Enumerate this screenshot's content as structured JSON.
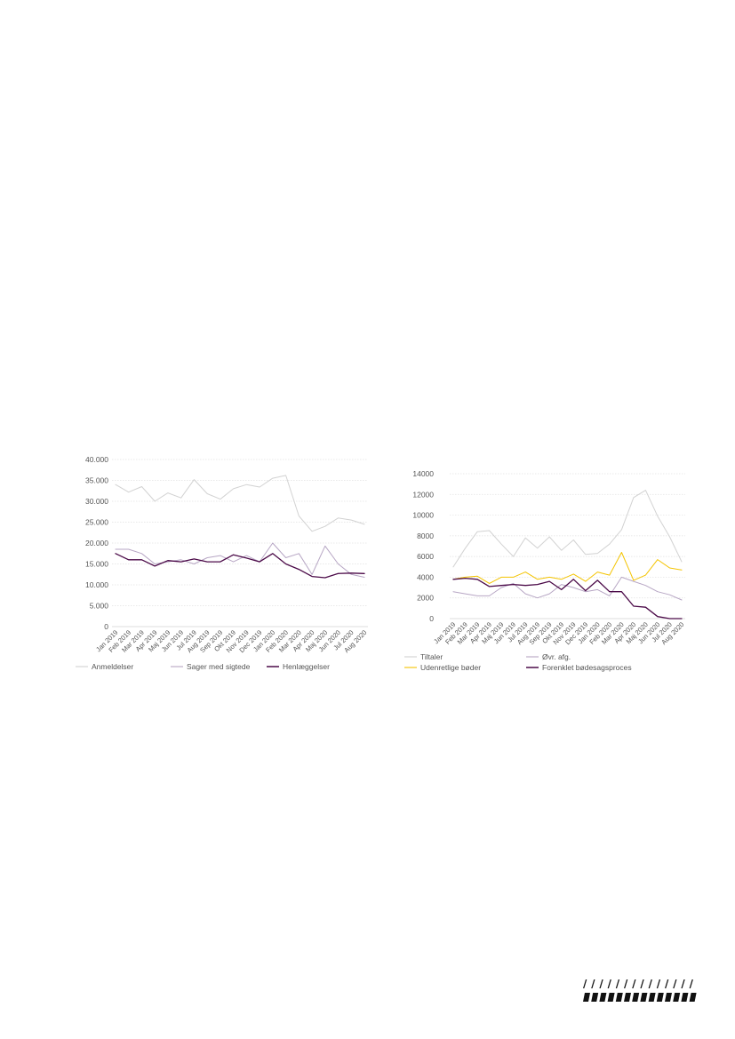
{
  "chart_data": [
    {
      "type": "line",
      "ylim": [
        0,
        40000
      ],
      "yticks": [
        0,
        5000,
        10000,
        15000,
        20000,
        25000,
        30000,
        35000,
        40000
      ],
      "ytick_labels": [
        "0",
        "5.000",
        "10.000",
        "15.000",
        "20.000",
        "25.000",
        "30.000",
        "35.000",
        "40.000"
      ],
      "categories": [
        "Jan 2019",
        "Feb 2019",
        "Mar 2019",
        "Apr 2019",
        "Maj 2019",
        "Jun 2019",
        "Jul 2019",
        "Aug 2019",
        "Sep 2019",
        "Okt 2019",
        "Nov 2019",
        "Dec 2019",
        "Jan 2020",
        "Feb 2020",
        "Mar 2020",
        "Apr 2020",
        "Maj 2020",
        "Jun 2020",
        "Jul 2020",
        "Aug 2020"
      ],
      "legend_position": "bottom",
      "grid": true,
      "series": [
        {
          "name": "Anmeldelser",
          "color": "#d2d2d2",
          "values": [
            34000,
            32200,
            33500,
            30000,
            32000,
            30800,
            35200,
            31800,
            30500,
            33000,
            34000,
            33400,
            35500,
            36200,
            26500,
            22800,
            24000,
            26000,
            25500,
            24500
          ]
        },
        {
          "name": "Sager med sigtede",
          "color": "#b7a6c4",
          "values": [
            18500,
            18500,
            17500,
            15000,
            15500,
            16000,
            15000,
            16500,
            17000,
            15500,
            17000,
            15500,
            20000,
            16500,
            17500,
            12500,
            19300,
            15000,
            12500,
            11800
          ]
        },
        {
          "name": "Henlæggelser",
          "color": "#4b0a48",
          "values": [
            17500,
            16000,
            16000,
            14500,
            15800,
            15500,
            16200,
            15500,
            15500,
            17200,
            16400,
            15500,
            17500,
            15000,
            13700,
            12000,
            11700,
            12700,
            12800,
            12700
          ]
        }
      ]
    },
    {
      "type": "line",
      "ylim": [
        0,
        14000
      ],
      "yticks": [
        0,
        2000,
        4000,
        6000,
        8000,
        10000,
        12000,
        14000
      ],
      "ytick_labels": [
        "0",
        "2000",
        "4000",
        "6000",
        "8000",
        "10000",
        "12000",
        "14000"
      ],
      "categories": [
        "Jan 2019",
        "Feb 2019",
        "Mar 2019",
        "Apr 2019",
        "Maj 2019",
        "Jun 2019",
        "Jul 2019",
        "Aug 2019",
        "Sep 2019",
        "Okt 2019",
        "Nov 2019",
        "Dec 2019",
        "Jan 2020",
        "Feb 2020",
        "Mar 2020",
        "Apr 2020",
        "Maj 2020",
        "Jun 2020",
        "Jul 2020",
        "Aug 2020"
      ],
      "legend_position": "bottom",
      "grid": true,
      "series": [
        {
          "name": "Tiltaler",
          "color": "#d2d2d2",
          "values": [
            5000,
            6800,
            8400,
            8500,
            7200,
            6000,
            7800,
            6800,
            7900,
            6600,
            7600,
            6200,
            6300,
            7200,
            8600,
            11700,
            12400,
            9900,
            7900,
            5500
          ]
        },
        {
          "name": "Øvr. afg.",
          "color": "#b7a6c4",
          "values": [
            2600,
            2400,
            2200,
            2200,
            3000,
            3400,
            2400,
            2000,
            2400,
            3300,
            3000,
            2600,
            2800,
            2200,
            4000,
            3600,
            3200,
            2600,
            2300,
            1800
          ]
        },
        {
          "name": "Udenretlige bøder",
          "color": "#f4c400",
          "values": [
            3800,
            4000,
            4100,
            3400,
            4000,
            4000,
            4500,
            3800,
            4000,
            3800,
            4300,
            3600,
            4500,
            4200,
            6400,
            3700,
            4200,
            5700,
            4900,
            4700
          ]
        },
        {
          "name": "Forenklet bødesagsproces",
          "color": "#4b0a48",
          "values": [
            3800,
            3900,
            3800,
            3100,
            3200,
            3300,
            3200,
            3300,
            3600,
            2800,
            3800,
            2700,
            3700,
            2600,
            2600,
            1200,
            1100,
            200,
            0,
            0
          ]
        }
      ]
    }
  ]
}
